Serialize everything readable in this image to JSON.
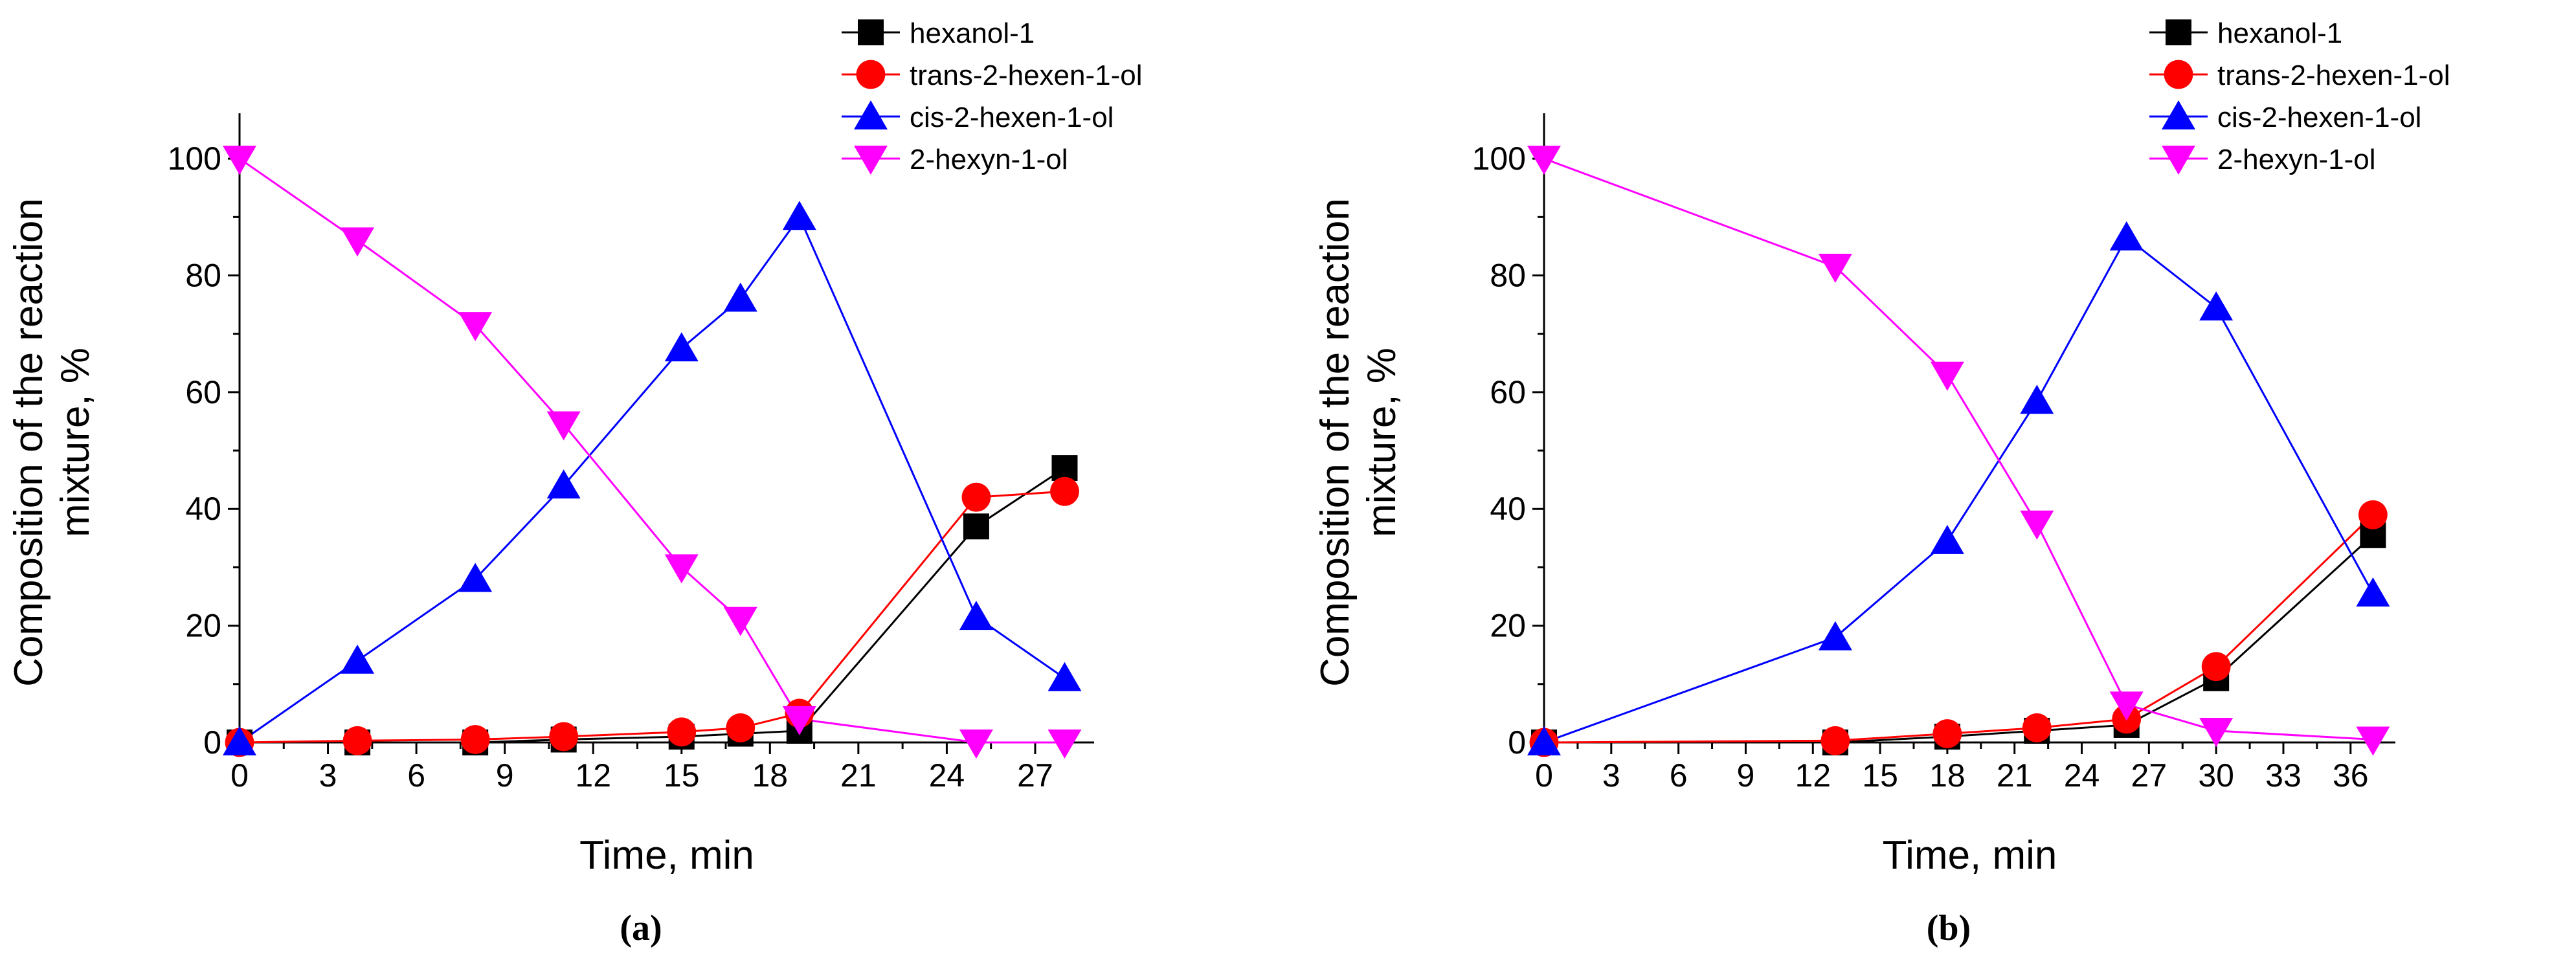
{
  "series_styles": [
    {
      "color": "#000000",
      "marker": "square"
    },
    {
      "color": "#ff0000",
      "marker": "circle"
    },
    {
      "color": "#0000ff",
      "marker": "triangle-up"
    },
    {
      "color": "#ff00ff",
      "marker": "triangle-down"
    }
  ],
  "chart_data": [
    {
      "type": "line",
      "caption": "(a)",
      "xlabel": "Time, min",
      "ylabel": [
        "Composition of the reaction",
        "mixture, %"
      ],
      "xlim": [
        0,
        29
      ],
      "ylim": [
        0,
        105
      ],
      "xticks": [
        0,
        3,
        6,
        9,
        12,
        15,
        18,
        21,
        24,
        27
      ],
      "yticks": [
        0,
        20,
        40,
        60,
        80,
        100
      ],
      "grid": false,
      "legend_position": "top-right",
      "x": [
        0,
        4,
        8,
        11,
        15,
        17,
        19,
        25,
        28
      ],
      "series": [
        {
          "name": "hexanol-1",
          "values": [
            0,
            0,
            0,
            0.5,
            1,
            1.5,
            2,
            37,
            47
          ]
        },
        {
          "name": "trans-2-hexen-1-ol",
          "values": [
            0,
            0.3,
            0.5,
            1,
            1.8,
            2.5,
            5,
            42,
            43
          ]
        },
        {
          "name": "cis-2-hexen-1-ol",
          "values": [
            0,
            14,
            28,
            44,
            67.5,
            76,
            90,
            21.5,
            11
          ]
        },
        {
          "name": "2-hexyn-1-ol",
          "values": [
            100,
            86,
            71.5,
            54.5,
            30,
            21,
            4,
            0,
            0
          ]
        }
      ]
    },
    {
      "type": "line",
      "caption": "(b)",
      "xlabel": "Time, min",
      "ylabel": [
        "Composition of the reaction",
        "mixture, %"
      ],
      "xlim": [
        0,
        38
      ],
      "ylim": [
        0,
        105
      ],
      "xticks": [
        0,
        3,
        6,
        9,
        12,
        15,
        18,
        21,
        24,
        27,
        30,
        33,
        36
      ],
      "yticks": [
        0,
        20,
        40,
        60,
        80,
        100
      ],
      "grid": false,
      "legend_position": "top-right",
      "x": [
        0,
        13,
        18,
        22,
        26,
        30,
        37
      ],
      "series": [
        {
          "name": "hexanol-1",
          "values": [
            0,
            0,
            1,
            2,
            3,
            11,
            35.5
          ]
        },
        {
          "name": "trans-2-hexen-1-ol",
          "values": [
            0,
            0.3,
            1.5,
            2.5,
            4,
            13,
            39
          ]
        },
        {
          "name": "cis-2-hexen-1-ol",
          "values": [
            0,
            18,
            34.5,
            58.5,
            86.5,
            74.5,
            25.5
          ]
        },
        {
          "name": "2-hexyn-1-ol",
          "values": [
            100,
            81.5,
            63,
            37.5,
            6.5,
            2,
            0.5
          ]
        }
      ]
    }
  ]
}
